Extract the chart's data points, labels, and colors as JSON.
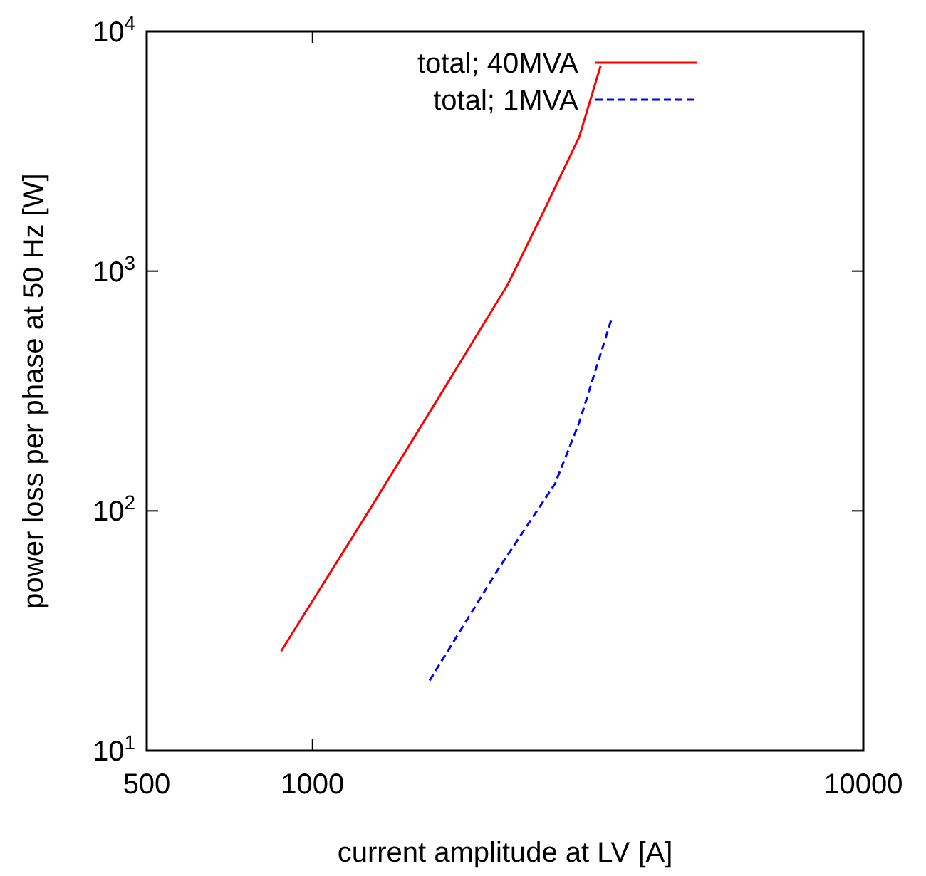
{
  "chart_data": {
    "type": "line",
    "xlabel": "current amplitude at LV [A]",
    "ylabel": "power loss per phase at 50 Hz [W]",
    "log": "xy",
    "xlim": [
      500,
      10000
    ],
    "xticks": [
      500,
      1000,
      10000
    ],
    "ylim": [
      10,
      10000
    ],
    "yticks": [
      {
        "value": 10,
        "label": "10$^{1}$"
      },
      {
        "value": 100,
        "label": "10$^{2}$"
      },
      {
        "value": 1000,
        "label": "10$^{3}$"
      },
      {
        "value": 10000,
        "label": "10$^{4}$"
      }
    ],
    "grid": false,
    "legend": "top right",
    "marker": "none",
    "series": [
      {
        "name": "total; 40MVA",
        "color": "#ff0000",
        "line_style": "solid",
        "x": [
          877,
          1269,
          1711,
          2265,
          2644,
          3050,
          3336
        ],
        "values": [
          26,
          101,
          308,
          884,
          1828,
          3631,
          7200
        ]
      },
      {
        "name": "total; 1MVA",
        "color": "#0000ff",
        "line_style": "dashed",
        "x": [
          1631,
          2172,
          2757,
          3050,
          3500
        ],
        "values": [
          19.6,
          57,
          130,
          234,
          645
        ]
      }
    ]
  }
}
